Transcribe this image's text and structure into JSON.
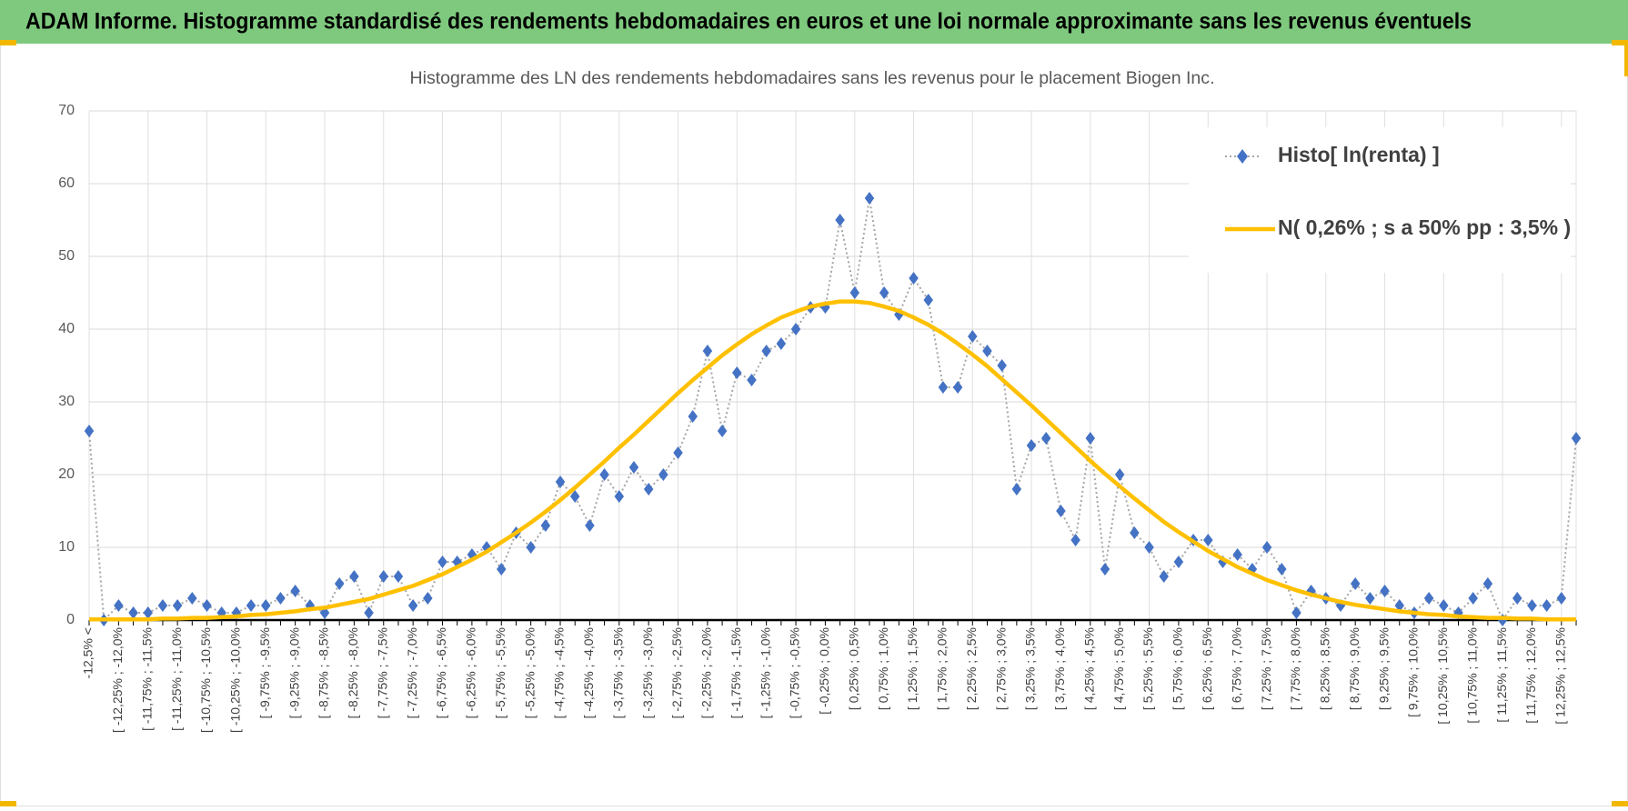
{
  "header": {
    "title": "ADAM Informe. Histogramme standardisé des rendements hebdomadaires en euros et une loi normale approximante sans les revenus éventuels"
  },
  "chart_data": {
    "type": "line",
    "title": "Histogramme  des LN des rendements hebdomadaires sans les revenus pour le placement Biogen Inc.",
    "categories": [
      "-12,5% <",
      null,
      "[ -12,25% ; -12,0%",
      null,
      "[ -11,75% ; -11,5%",
      null,
      "[ -11,25% ; -11,0%",
      null,
      "[ -10,75% ; -10,5%",
      null,
      "[ -10,25% ; -10,0%",
      null,
      "[ -9,75% ; -9,5%",
      null,
      "[ -9,25% ; -9,0%",
      null,
      "[ -8,75% ; -8,5%",
      null,
      "[ -8,25% ; -8,0%",
      null,
      "[ -7,75% ; -7,5%",
      null,
      "[ -7,25% ; -7,0%",
      null,
      "[ -6,75% ; -6,5%",
      null,
      "[ -6,25% ; -6,0%",
      null,
      "[ -5,75% ; -5,5%",
      null,
      "[ -5,25% ; -5,0%",
      null,
      "[ -4,75% ; -4,5%",
      null,
      "[ -4,25% ; -4,0%",
      null,
      "[ -3,75% ; -3,5%",
      null,
      "[ -3,25% ; -3,0%",
      null,
      "[ -2,75% ; -2,5%",
      null,
      "[ -2,25% ; -2,0%",
      null,
      "[ -1,75% ; -1,5%",
      null,
      "[ -1,25% ; -1,0%",
      null,
      "[ -0,75% ; -0,5%",
      null,
      "[ -0,25% ; 0,0%",
      null,
      "[ 0,25% ; 0,5%",
      null,
      "[ 0,75% ; 1,0%",
      null,
      "[ 1,25% ; 1,5%",
      null,
      "[ 1,75% ; 2,0%",
      null,
      "[ 2,25% ; 2,5%",
      null,
      "[ 2,75% ; 3,0%",
      null,
      "[ 3,25% ; 3,5%",
      null,
      "[ 3,75% ; 4,0%",
      null,
      "[ 4,25% ; 4,5%",
      null,
      "[ 4,75% ; 5,0%",
      null,
      "[ 5,25% ; 5,5%",
      null,
      "[ 5,75% ; 6,0%",
      null,
      "[ 6,25% ; 6,5%",
      null,
      "[ 6,75% ; 7,0%",
      null,
      "[ 7,25% ; 7,5%",
      null,
      "[ 7,75% ; 8,0%",
      null,
      "[ 8,25% ; 8,5%",
      null,
      "[ 8,75% ; 9,0%",
      null,
      "[ 9,25% ; 9,5%",
      null,
      "[ 9,75% ; 10,0%",
      null,
      "[ 10,25% ; 10,5%",
      null,
      "[ 10,75% ; 11,0%",
      null,
      "[ 11,25% ; 11,5%",
      null,
      "[ 11,75% ; 12,0%",
      null,
      "[ 12,25% ; 12,5%",
      null
    ],
    "series": [
      {
        "name": "Histo[ ln(renta) ]",
        "color": "#4472c4",
        "line_color": "#a6a6a6",
        "values": [
          26,
          0,
          2,
          1,
          1,
          2,
          2,
          3,
          2,
          1,
          1,
          2,
          2,
          3,
          4,
          2,
          1,
          5,
          6,
          1,
          6,
          6,
          2,
          3,
          8,
          8,
          9,
          10,
          7,
          12,
          10,
          13,
          19,
          17,
          13,
          20,
          17,
          21,
          18,
          20,
          23,
          28,
          37,
          26,
          34,
          33,
          37,
          38,
          40,
          43,
          43,
          55,
          45,
          58,
          45,
          42,
          47,
          44,
          32,
          32,
          39,
          37,
          35,
          18,
          24,
          25,
          15,
          11,
          25,
          7,
          20,
          12,
          10,
          6,
          8,
          11,
          11,
          8,
          9,
          7,
          10,
          7,
          1,
          4,
          3,
          2,
          5,
          3,
          4,
          2,
          1,
          3,
          2,
          1,
          3,
          5,
          0,
          3,
          2,
          2,
          3,
          25
        ]
      },
      {
        "name": "N( 0,26% ; s a 50% pp : 3,5% )",
        "color": "#ffc000",
        "values": [
          0.1,
          0.1,
          0.1,
          0.1,
          0.1,
          0.2,
          0.2,
          0.3,
          0.3,
          0.4,
          0.5,
          0.7,
          0.8,
          1.0,
          1.2,
          1.5,
          1.7,
          2.1,
          2.5,
          2.9,
          3.5,
          4.1,
          4.7,
          5.5,
          6.3,
          7.3,
          8.3,
          9.4,
          10.7,
          12.0,
          13.4,
          14.9,
          16.5,
          18.2,
          20.0,
          21.8,
          23.7,
          25.5,
          27.4,
          29.3,
          31.2,
          33.0,
          34.7,
          36.4,
          37.9,
          39.3,
          40.5,
          41.6,
          42.4,
          43.1,
          43.5,
          43.8,
          43.8,
          43.6,
          43.1,
          42.5,
          41.6,
          40.6,
          39.4,
          38.0,
          36.5,
          34.9,
          33.1,
          31.3,
          29.5,
          27.6,
          25.7,
          23.8,
          21.9,
          20.1,
          18.4,
          16.7,
          15.1,
          13.5,
          12.1,
          10.8,
          9.5,
          8.4,
          7.3,
          6.4,
          5.5,
          4.8,
          4.1,
          3.5,
          3.0,
          2.5,
          2.1,
          1.8,
          1.5,
          1.2,
          1.0,
          0.8,
          0.7,
          0.5,
          0.4,
          0.3,
          0.3,
          0.2,
          0.2,
          0.1,
          0.1,
          0.1
        ]
      }
    ],
    "ylim": [
      0,
      70
    ],
    "yticks": [
      0,
      10,
      20,
      30,
      40,
      50,
      60,
      70
    ],
    "grid": true,
    "legend": "upper right"
  }
}
